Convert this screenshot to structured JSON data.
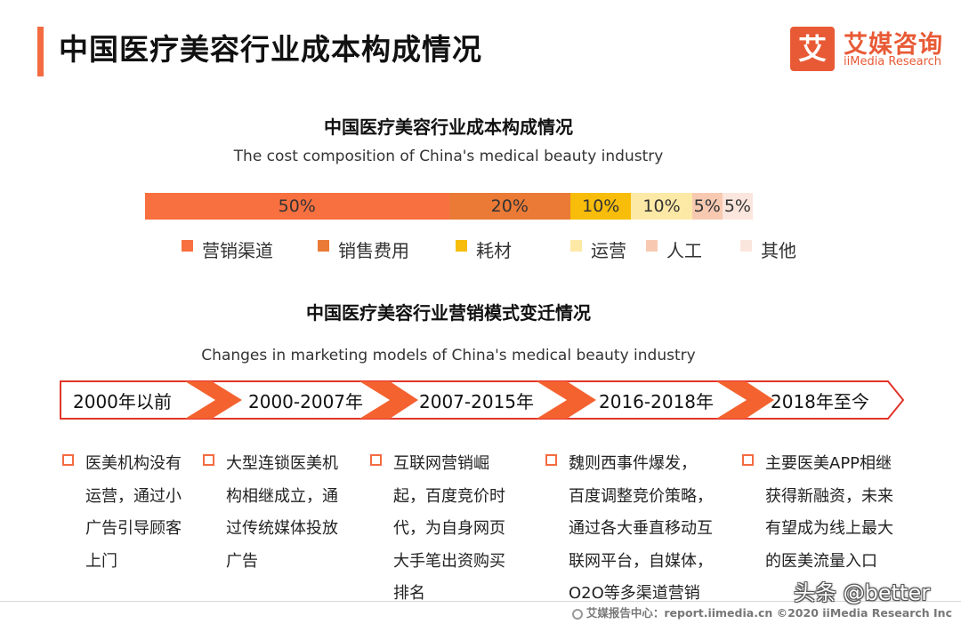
{
  "header": {
    "title": "中国医疗美容行业成本构成情况",
    "logo_mark": "艾",
    "logo_cn": "艾媒咨询",
    "logo_en": "iiMedia Research"
  },
  "chart_data": {
    "type": "bar",
    "orientation": "horizontal-stacked-100%",
    "title": "中国医疗美容行业成本构成情况",
    "subtitle": "The cost composition of China's medical beauty industry",
    "series": [
      {
        "name": "营销渠道",
        "value": 50,
        "label": "50%",
        "color": "#f8703f"
      },
      {
        "name": "销售费用",
        "value": 20,
        "label": "20%",
        "color": "#eb7a36"
      },
      {
        "name": "耗材",
        "value": 10,
        "label": "10%",
        "color": "#f7bd0a"
      },
      {
        "name": "运营",
        "value": 10,
        "label": "10%",
        "color": "#fde9a6"
      },
      {
        "name": "人工",
        "value": 5,
        "label": "5%",
        "color": "#f7c9b1"
      },
      {
        "name": "其他",
        "value": 5,
        "label": "5%",
        "color": "#fbe6dd"
      }
    ],
    "legend_position": "bottom"
  },
  "timeline": {
    "title": "中国医疗美容行业营销模式变迁情况",
    "subtitle": "Changes in marketing models of China's medical beauty industry",
    "periods": [
      {
        "label": "2000年以前",
        "lines": [
          "医美机构没有",
          "运营，通过小",
          "广告引导顾客",
          "上门"
        ]
      },
      {
        "label": "2000-2007年",
        "lines": [
          "大型连锁医美机",
          "构相继成立，通",
          "过传统媒体投放",
          "广告"
        ]
      },
      {
        "label": "2007-2015年",
        "lines": [
          "互联网营销崛",
          "起，百度竞价时",
          "代，为自身网页",
          "大手笔出资购买",
          "排名"
        ]
      },
      {
        "label": "2016-2018年",
        "lines": [
          "魏则西事件爆发，",
          "百度调整竞价策略，",
          "通过各大垂直移动互",
          "联网平台，自媒体，",
          "O2O等多渠道营销"
        ]
      },
      {
        "label": "2018年至今",
        "lines": [
          "主要医美APP相继",
          "获得新融资，未来",
          "有望成为线上最大",
          "的医美流量入口"
        ]
      }
    ]
  },
  "footer": {
    "source": "艾媒报告中心：report.iimedia.cn   ©2020  iiMedia Research  Inc",
    "watermark": "头条 @better"
  }
}
